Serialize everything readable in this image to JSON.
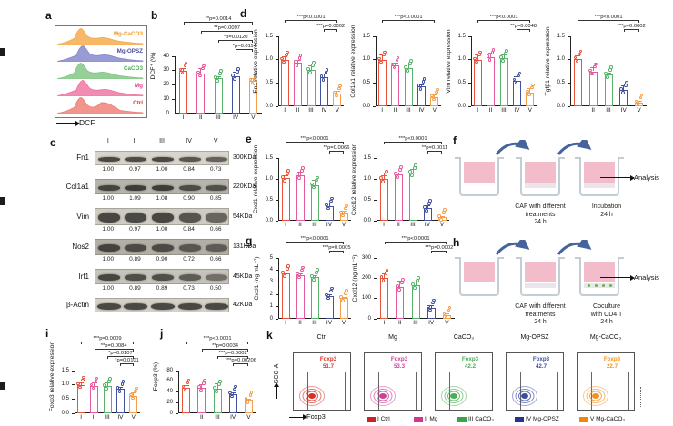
{
  "figure": {
    "panel_labels": {
      "a": "a",
      "b": "b",
      "c": "c",
      "d": "d",
      "e": "e",
      "f": "f",
      "g": "g",
      "h": "h",
      "i": "i",
      "j": "j",
      "k": "k"
    }
  },
  "colors": {
    "groups": [
      "#e8543a",
      "#e55a9c",
      "#56b269",
      "#40519f",
      "#f59f4a"
    ],
    "legend": [
      "#cc2127",
      "#d3368e",
      "#37a64a",
      "#27348b",
      "#f0860f"
    ]
  },
  "panel_a": {
    "xlabel": "DCF",
    "curves": [
      {
        "name": "Mg-CaCO3",
        "color": "#f5a843",
        "label_color": "#f09b2e"
      },
      {
        "name": "Mg-OPSZ",
        "color": "#8083c9",
        "label_color": "#4a4fa3"
      },
      {
        "name": "CaCO3",
        "color": "#7cc47e",
        "label_color": "#4db056"
      },
      {
        "name": "Mg",
        "color": "#ef6f9f",
        "label_color": "#e0408f"
      },
      {
        "name": "Ctrl",
        "color": "#ee7a72",
        "label_color": "#e0352e"
      }
    ]
  },
  "panel_c": {
    "lanes": [
      "I",
      "II",
      "III",
      "IV",
      "V"
    ],
    "rows": [
      {
        "protein": "Fn1",
        "kda": "300KDa",
        "values": [
          "1.00",
          "0.97",
          "1.00",
          "0.84",
          "0.73"
        ]
      },
      {
        "protein": "Col1a1",
        "kda": "220KDa",
        "values": [
          "1.00",
          "1.09",
          "1.08",
          "0.90",
          "0.85"
        ]
      },
      {
        "protein": "Vim",
        "kda": "54KDa",
        "values": [
          "1.00",
          "0.97",
          "1.00",
          "0.84",
          "0.66"
        ]
      },
      {
        "protein": "Nos2",
        "kda": "131KDa",
        "values": [
          "1.00",
          "0.89",
          "0.90",
          "0.72",
          "0.66"
        ]
      },
      {
        "protein": "Irf1",
        "kda": "45KDa",
        "values": [
          "1.00",
          "0.89",
          "0.89",
          "0.73",
          "0.50"
        ]
      },
      {
        "protein": "β-Actin",
        "kda": "42KDa",
        "values": null
      }
    ]
  },
  "panel_f": {
    "step2": [
      "CAF with different",
      "treatments",
      "24 h"
    ],
    "step3": [
      "Incubation",
      "24 h"
    ],
    "analysis": "Analysis",
    "cells": false
  },
  "panel_h": {
    "step2": [
      "CAF with different",
      "treatments",
      "24 h"
    ],
    "step3": [
      "Coculture",
      "with CD4 T",
      "24 h"
    ],
    "analysis": "Analysis",
    "cells": true
  },
  "panel_k": {
    "ylabel": "SCC-A",
    "xlabel": "Foxp3",
    "plots": [
      {
        "title": "Ctrl",
        "marker": "Foxp3",
        "value": "51.7",
        "color": "#d93025"
      },
      {
        "title": "Mg",
        "marker": "Foxp3",
        "value": "53.3",
        "color": "#cf3f97"
      },
      {
        "title": "CaCO₃",
        "marker": "Foxp3",
        "value": "42.2",
        "color": "#4aae52"
      },
      {
        "title": "Mg-OPSZ",
        "marker": "Foxp3",
        "value": "42.7",
        "color": "#3c4ea0"
      },
      {
        "title": "Mg-CaCO₃",
        "marker": "Foxp3",
        "value": "22.7",
        "color": "#f29222"
      }
    ],
    "legend": [
      {
        "label": "I Ctrl",
        "color": "#cc2127"
      },
      {
        "label": "II Mg",
        "color": "#d3368e"
      },
      {
        "label": "III CaCO₃",
        "color": "#37a64a"
      },
      {
        "label": "IV Mg-OPSZ",
        "color": "#27348b"
      },
      {
        "label": "V Mg-CaCO₃",
        "color": "#f0860f"
      }
    ]
  },
  "chart_data": [
    {
      "id": "b",
      "type": "bar",
      "ylabel": "DCF⁺ (%)",
      "categories": [
        "I",
        "II",
        "III",
        "IV",
        "V"
      ],
      "values": [
        30,
        28,
        24.5,
        26,
        23
      ],
      "err": [
        2,
        3.5,
        1.5,
        3,
        2
      ],
      "ylim": [
        0,
        40
      ],
      "yticks": [
        "0",
        "10",
        "20",
        "30",
        "40"
      ],
      "brackets": [
        {
          "text": "**p=0.0014",
          "from": 0,
          "to": 4,
          "level": 3
        },
        {
          "text": "**p=0.0097",
          "from": 1,
          "to": 4,
          "level": 2
        },
        {
          "text": "*p=0.0120",
          "from": 2,
          "to": 4,
          "level": 1
        },
        {
          "text": "*p=0.0114",
          "from": 3,
          "to": 4,
          "level": 0
        }
      ]
    },
    {
      "id": "d1",
      "type": "bar",
      "ylabel": "Fn1 relative expression",
      "categories": [
        "I",
        "II",
        "III",
        "IV",
        "V"
      ],
      "values": [
        1.0,
        0.93,
        0.78,
        0.62,
        0.28
      ],
      "err": [
        0.08,
        0.06,
        0.1,
        0.08,
        0.06
      ],
      "ylim": [
        0,
        1.5
      ],
      "yticks": [
        "0.0",
        "0.5",
        "1.0",
        "1.5"
      ],
      "brackets": [
        {
          "text": "***p<0.0001",
          "from": 0,
          "to": 4,
          "level": 1
        },
        {
          "text": "***p=0.0002",
          "from": 3,
          "to": 4,
          "level": 0
        }
      ]
    },
    {
      "id": "d2",
      "type": "bar",
      "ylabel": "Col1a1 relative expression",
      "categories": [
        "I",
        "II",
        "III",
        "IV",
        "V"
      ],
      "values": [
        1.0,
        0.88,
        0.82,
        0.42,
        0.2
      ],
      "err": [
        0.12,
        0.06,
        0.1,
        0.04,
        0.05
      ],
      "ylim": [
        0,
        1.5
      ],
      "yticks": [
        "0.0",
        "0.5",
        "1.0",
        "1.5"
      ],
      "brackets": [
        {
          "text": "***p<0.0001",
          "from": 0,
          "to": 4,
          "level": 1
        }
      ]
    },
    {
      "id": "d3",
      "type": "bar",
      "ylabel": "Vim relative expression",
      "categories": [
        "I",
        "II",
        "III",
        "IV",
        "V"
      ],
      "values": [
        1.0,
        1.05,
        1.03,
        0.55,
        0.3
      ],
      "err": [
        0.12,
        0.1,
        0.08,
        0.1,
        0.08
      ],
      "ylim": [
        0,
        1.5
      ],
      "yticks": [
        "0.0",
        "0.5",
        "1.0",
        "1.5"
      ],
      "brackets": [
        {
          "text": "***p<0.0001",
          "from": 0,
          "to": 4,
          "level": 1
        },
        {
          "text": "**p=0.0048",
          "from": 3,
          "to": 4,
          "level": 0
        }
      ]
    },
    {
      "id": "d4",
      "type": "bar",
      "ylabel": "Tgfβ1 relative expression",
      "categories": [
        "I",
        "II",
        "III",
        "IV",
        "V"
      ],
      "values": [
        1.02,
        0.75,
        0.68,
        0.35,
        0.08
      ],
      "err": [
        0.08,
        0.08,
        0.05,
        0.1,
        0.03
      ],
      "ylim": [
        0,
        1.5
      ],
      "yticks": [
        "0.0",
        "0.5",
        "1.0",
        "1.5"
      ],
      "brackets": [
        {
          "text": "***p<0.0001",
          "from": 0,
          "to": 4,
          "level": 1
        },
        {
          "text": "***p=0.0002",
          "from": 3,
          "to": 4,
          "level": 0
        }
      ]
    },
    {
      "id": "e1",
      "type": "bar",
      "ylabel": "Cxcl1 relative expression",
      "categories": [
        "I",
        "II",
        "III",
        "IV",
        "V"
      ],
      "values": [
        1.02,
        1.08,
        0.85,
        0.35,
        0.18
      ],
      "err": [
        0.06,
        0.1,
        0.12,
        0.08,
        0.06
      ],
      "ylim": [
        0,
        1.5
      ],
      "yticks": [
        "0.0",
        "0.5",
        "1.0",
        "1.5"
      ],
      "brackets": [
        {
          "text": "***p<0.0001",
          "from": 0,
          "to": 4,
          "level": 1
        },
        {
          "text": "**p=0.0066",
          "from": 3,
          "to": 4,
          "level": 0
        }
      ]
    },
    {
      "id": "e2",
      "type": "bar",
      "ylabel": "Cxcl12 relative expression",
      "categories": [
        "I",
        "II",
        "III",
        "IV",
        "V"
      ],
      "values": [
        1.0,
        1.1,
        1.15,
        0.3,
        0.08
      ],
      "err": [
        0.08,
        0.06,
        0.08,
        0.06,
        0.03
      ],
      "ylim": [
        0,
        1.5
      ],
      "yticks": [
        "0.0",
        "0.5",
        "1.0",
        "1.5"
      ],
      "brackets": [
        {
          "text": "***p<0.0001",
          "from": 0,
          "to": 4,
          "level": 1
        },
        {
          "text": "**p=0.0011",
          "from": 3,
          "to": 4,
          "level": 0
        }
      ]
    },
    {
      "id": "g1",
      "type": "bar",
      "ylabel": "Cxcl1 (ng mL⁻¹)",
      "categories": [
        "I",
        "II",
        "III",
        "IV",
        "V"
      ],
      "values": [
        3.7,
        3.6,
        3.4,
        1.9,
        1.7
      ],
      "err": [
        0.15,
        0.1,
        0.2,
        0.15,
        0.1
      ],
      "ylim": [
        0,
        5
      ],
      "yticks": [
        "0",
        "1",
        "2",
        "3",
        "4",
        "5"
      ],
      "brackets": [
        {
          "text": "***p<0.0001",
          "from": 0,
          "to": 4,
          "level": 1
        },
        {
          "text": "***p=0.0005",
          "from": 3,
          "to": 4,
          "level": 0
        }
      ]
    },
    {
      "id": "g2",
      "type": "bar",
      "ylabel": "Cxcl12 (ng mL⁻¹)",
      "categories": [
        "I",
        "II",
        "III",
        "IV",
        "V"
      ],
      "values": [
        200,
        155,
        165,
        55,
        20
      ],
      "err": [
        25,
        35,
        20,
        12,
        6
      ],
      "ylim": [
        0,
        300
      ],
      "yticks": [
        "0",
        "100",
        "200",
        "300"
      ],
      "brackets": [
        {
          "text": "***p<0.0001",
          "from": 0,
          "to": 4,
          "level": 1
        },
        {
          "text": "***p=0.0002",
          "from": 3,
          "to": 4,
          "level": 0
        }
      ]
    },
    {
      "id": "i",
      "type": "bar",
      "ylabel": "Foxp3 relative expression",
      "categories": [
        "I",
        "II",
        "III",
        "IV",
        "V"
      ],
      "values": [
        1.0,
        0.97,
        0.95,
        0.85,
        0.62
      ],
      "err": [
        0.07,
        0.12,
        0.12,
        0.08,
        0.1
      ],
      "ylim": [
        0,
        1.5
      ],
      "yticks": [
        "0.0",
        "0.5",
        "1.0",
        "1.5"
      ],
      "brackets": [
        {
          "text": "***p=0.0009",
          "from": 0,
          "to": 4,
          "level": 3
        },
        {
          "text": "**p=0.0084",
          "from": 1,
          "to": 4,
          "level": 2
        },
        {
          "text": "*p=0.0107",
          "from": 2,
          "to": 4,
          "level": 1
        },
        {
          "text": "*p=0.0101",
          "from": 3,
          "to": 4,
          "level": 0
        }
      ]
    },
    {
      "id": "j",
      "type": "bar",
      "ylabel": "Foxp3 (%)",
      "categories": [
        "I",
        "II",
        "III",
        "IV",
        "V"
      ],
      "values": [
        48,
        47,
        46,
        36,
        25
      ],
      "err": [
        4,
        8,
        10,
        4,
        3
      ],
      "ylim": [
        0,
        80
      ],
      "yticks": [
        "0",
        "20",
        "40",
        "60",
        "80"
      ],
      "brackets": [
        {
          "text": "***p<0.0001",
          "from": 0,
          "to": 4,
          "level": 3
        },
        {
          "text": "**p=0.0034",
          "from": 1,
          "to": 4,
          "level": 2
        },
        {
          "text": "***p=0.0002",
          "from": 2,
          "to": 4,
          "level": 1
        },
        {
          "text": "***p=0.00206",
          "from": 3,
          "to": 4,
          "level": 0
        }
      ]
    }
  ]
}
